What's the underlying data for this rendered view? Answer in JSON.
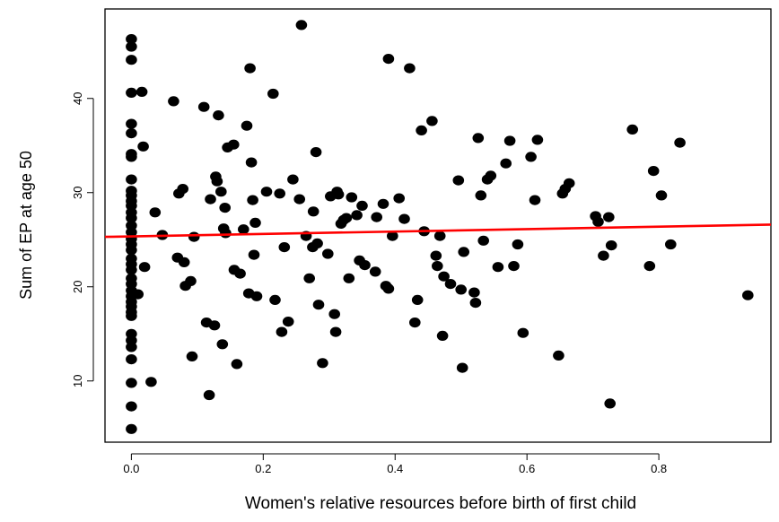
{
  "chart_data": {
    "type": "scatter",
    "title": "",
    "xlabel": "Women's relative resources before birth of first child",
    "ylabel": "Sum of EP at age 50",
    "xlim": [
      -0.04,
      0.97
    ],
    "ylim": [
      3.5,
      49.5
    ],
    "x_ticks": [
      0.0,
      0.2,
      0.4,
      0.6,
      0.8
    ],
    "x_tick_labels": [
      "0.0",
      "0.2",
      "0.4",
      "0.6",
      "0.8"
    ],
    "y_ticks": [
      10,
      20,
      30,
      40
    ],
    "y_tick_labels": [
      "10",
      "20",
      "30",
      "40"
    ],
    "grid": false,
    "legend": "none",
    "point_color": "#000000",
    "fit_line": {
      "color": "#ff0000",
      "x": [
        -0.04,
        0.97
      ],
      "y": [
        25.3,
        26.6
      ]
    },
    "points": [
      [
        0.0,
        46.3
      ],
      [
        0.0,
        45.5
      ],
      [
        0.0,
        44.1
      ],
      [
        0.0,
        40.6
      ],
      [
        0.0,
        37.3
      ],
      [
        0.0,
        36.3
      ],
      [
        0.0,
        34.1
      ],
      [
        0.0,
        33.8
      ],
      [
        0.0,
        31.4
      ],
      [
        0.0,
        30.2
      ],
      [
        0.0,
        29.7
      ],
      [
        0.0,
        29.1
      ],
      [
        0.0,
        28.6
      ],
      [
        0.0,
        27.9
      ],
      [
        0.0,
        27.3
      ],
      [
        0.0,
        26.5
      ],
      [
        0.0,
        25.8
      ],
      [
        0.0,
        25.1
      ],
      [
        0.0,
        24.5
      ],
      [
        0.0,
        23.9
      ],
      [
        0.0,
        23.0
      ],
      [
        0.0,
        22.4
      ],
      [
        0.0,
        21.8
      ],
      [
        0.0,
        20.9
      ],
      [
        0.0,
        20.3
      ],
      [
        0.0,
        19.6
      ],
      [
        0.0,
        19.0
      ],
      [
        0.0,
        18.4
      ],
      [
        0.0,
        17.9
      ],
      [
        0.0,
        17.3
      ],
      [
        0.0,
        16.9
      ],
      [
        0.0,
        15.0
      ],
      [
        0.0,
        14.3
      ],
      [
        0.0,
        13.6
      ],
      [
        0.0,
        12.3
      ],
      [
        0.0,
        9.8
      ],
      [
        0.0,
        7.3
      ],
      [
        0.0,
        4.9
      ],
      [
        0.01,
        19.2
      ],
      [
        0.016,
        40.7
      ],
      [
        0.018,
        34.9
      ],
      [
        0.02,
        22.1
      ],
      [
        0.03,
        9.9
      ],
      [
        0.036,
        27.9
      ],
      [
        0.047,
        25.5
      ],
      [
        0.064,
        39.7
      ],
      [
        0.07,
        23.1
      ],
      [
        0.072,
        29.9
      ],
      [
        0.078,
        30.4
      ],
      [
        0.08,
        22.6
      ],
      [
        0.082,
        20.1
      ],
      [
        0.09,
        20.6
      ],
      [
        0.092,
        12.6
      ],
      [
        0.095,
        25.3
      ],
      [
        0.11,
        39.1
      ],
      [
        0.114,
        16.2
      ],
      [
        0.118,
        8.5
      ],
      [
        0.12,
        29.3
      ],
      [
        0.126,
        15.9
      ],
      [
        0.128,
        31.7
      ],
      [
        0.13,
        31.2
      ],
      [
        0.132,
        38.2
      ],
      [
        0.136,
        30.1
      ],
      [
        0.138,
        13.9
      ],
      [
        0.14,
        26.2
      ],
      [
        0.142,
        28.4
      ],
      [
        0.143,
        25.7
      ],
      [
        0.146,
        34.8
      ],
      [
        0.155,
        35.1
      ],
      [
        0.156,
        21.8
      ],
      [
        0.16,
        11.8
      ],
      [
        0.165,
        21.4
      ],
      [
        0.17,
        26.1
      ],
      [
        0.175,
        37.1
      ],
      [
        0.178,
        19.3
      ],
      [
        0.18,
        43.2
      ],
      [
        0.182,
        33.2
      ],
      [
        0.184,
        29.2
      ],
      [
        0.186,
        23.4
      ],
      [
        0.188,
        26.8
      ],
      [
        0.19,
        19.0
      ],
      [
        0.205,
        30.1
      ],
      [
        0.215,
        40.5
      ],
      [
        0.218,
        18.6
      ],
      [
        0.225,
        29.9
      ],
      [
        0.228,
        15.2
      ],
      [
        0.232,
        24.2
      ],
      [
        0.238,
        16.3
      ],
      [
        0.245,
        31.4
      ],
      [
        0.255,
        29.3
      ],
      [
        0.258,
        47.8
      ],
      [
        0.265,
        25.4
      ],
      [
        0.27,
        20.9
      ],
      [
        0.275,
        24.2
      ],
      [
        0.276,
        28.0
      ],
      [
        0.28,
        34.3
      ],
      [
        0.282,
        24.6
      ],
      [
        0.284,
        18.1
      ],
      [
        0.29,
        11.9
      ],
      [
        0.298,
        23.5
      ],
      [
        0.302,
        29.6
      ],
      [
        0.308,
        17.1
      ],
      [
        0.31,
        15.2
      ],
      [
        0.312,
        30.1
      ],
      [
        0.314,
        29.8
      ],
      [
        0.318,
        26.7
      ],
      [
        0.322,
        27.1
      ],
      [
        0.326,
        27.3
      ],
      [
        0.33,
        20.9
      ],
      [
        0.334,
        29.5
      ],
      [
        0.342,
        27.6
      ],
      [
        0.346,
        22.8
      ],
      [
        0.35,
        28.6
      ],
      [
        0.354,
        22.3
      ],
      [
        0.37,
        21.6
      ],
      [
        0.372,
        27.4
      ],
      [
        0.382,
        28.8
      ],
      [
        0.386,
        20.1
      ],
      [
        0.39,
        19.8
      ],
      [
        0.39,
        44.2
      ],
      [
        0.396,
        25.4
      ],
      [
        0.406,
        29.4
      ],
      [
        0.414,
        27.2
      ],
      [
        0.422,
        43.2
      ],
      [
        0.43,
        16.2
      ],
      [
        0.434,
        18.6
      ],
      [
        0.44,
        36.6
      ],
      [
        0.444,
        25.9
      ],
      [
        0.456,
        37.6
      ],
      [
        0.462,
        23.3
      ],
      [
        0.464,
        22.2
      ],
      [
        0.468,
        25.4
      ],
      [
        0.472,
        14.8
      ],
      [
        0.474,
        21.1
      ],
      [
        0.484,
        20.3
      ],
      [
        0.496,
        31.3
      ],
      [
        0.5,
        19.7
      ],
      [
        0.502,
        11.4
      ],
      [
        0.504,
        23.7
      ],
      [
        0.52,
        19.4
      ],
      [
        0.522,
        18.3
      ],
      [
        0.526,
        35.8
      ],
      [
        0.53,
        29.7
      ],
      [
        0.534,
        24.9
      ],
      [
        0.54,
        31.4
      ],
      [
        0.545,
        31.8
      ],
      [
        0.556,
        22.1
      ],
      [
        0.568,
        33.1
      ],
      [
        0.574,
        35.5
      ],
      [
        0.58,
        22.2
      ],
      [
        0.586,
        24.5
      ],
      [
        0.594,
        15.1
      ],
      [
        0.606,
        33.8
      ],
      [
        0.612,
        29.2
      ],
      [
        0.616,
        35.6
      ],
      [
        0.648,
        12.7
      ],
      [
        0.654,
        29.9
      ],
      [
        0.658,
        30.4
      ],
      [
        0.664,
        31.0
      ],
      [
        0.704,
        27.5
      ],
      [
        0.708,
        26.9
      ],
      [
        0.716,
        23.3
      ],
      [
        0.724,
        27.4
      ],
      [
        0.726,
        7.6
      ],
      [
        0.728,
        24.4
      ],
      [
        0.76,
        36.7
      ],
      [
        0.786,
        22.2
      ],
      [
        0.792,
        32.3
      ],
      [
        0.804,
        29.7
      ],
      [
        0.818,
        24.5
      ],
      [
        0.832,
        35.3
      ],
      [
        0.935,
        19.1
      ]
    ]
  }
}
